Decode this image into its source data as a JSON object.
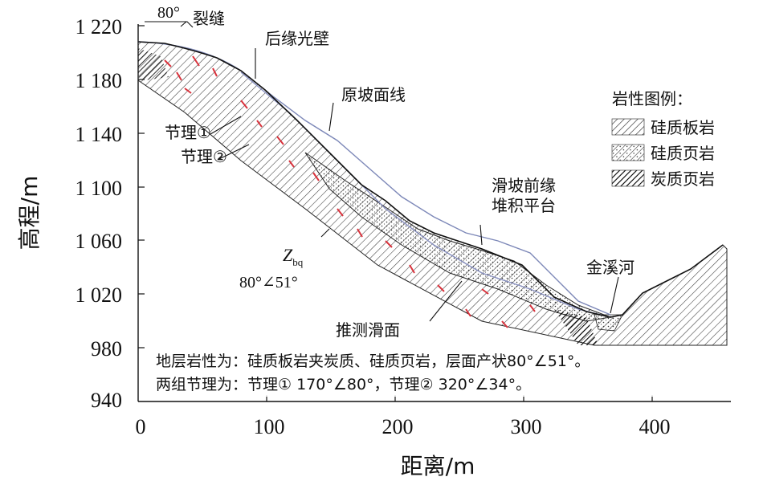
{
  "figure": {
    "y_axis_label": "高程/m",
    "x_axis_label": "距离/m",
    "y_ticks": [
      "1 220",
      "1 180",
      "1 140",
      "1 100",
      "1 060",
      "1 020",
      "980",
      "940"
    ],
    "x_ticks": [
      "0",
      "100",
      "200",
      "300",
      "400"
    ]
  },
  "labels": {
    "dip_top": "80°",
    "crack": "裂缝",
    "back_wall": "后缘光壁",
    "original_slope": "原坡面线",
    "joint1": "节理①",
    "joint2": "节理②",
    "front_platform_1": "滑坡前缘",
    "front_platform_2": "堆积平台",
    "formation_symbol": "Z",
    "formation_sub": "bq",
    "formation_attitude": "80°∠51°",
    "sliding_surface": "推测滑面",
    "river": "金溪河"
  },
  "legend": {
    "title": "岩性图例：",
    "items": [
      {
        "label": "硅质板岩",
        "pattern": "slate"
      },
      {
        "label": "硅质页岩",
        "pattern": "siliceous-shale"
      },
      {
        "label": "炭质页岩",
        "pattern": "carbon-shale"
      }
    ]
  },
  "notes": {
    "line1": "地层岩性为：硅质板岩夹炭质、硅质页岩，层面产状80°∠51°。",
    "line2": "两组节理为：节理① 170°∠80°，节理② 320°∠34°。"
  },
  "colors": {
    "hatch": "#3a3a3a",
    "red_marks": "#d9323c",
    "original_slope_line": "#7d88b8",
    "sliding_surface_line": "#8890c0"
  }
}
